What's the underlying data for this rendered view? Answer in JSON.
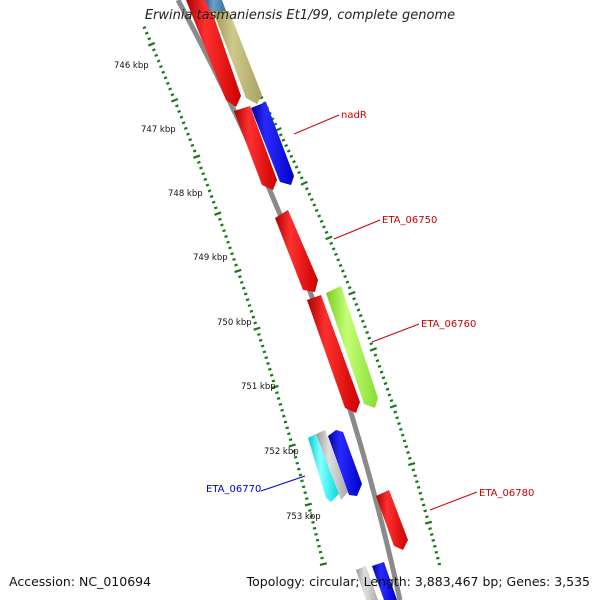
{
  "title": "Erwinia tasmaniensis Et1/99, complete genome",
  "footer": {
    "accession": "Accession: NC_010694",
    "summary": "Topology: circular; Length: 3,883,467 bp; Genes: 3,535"
  },
  "scale_labels": [
    "746 kbp",
    "747 kbp",
    "748 kbp",
    "749 kbp",
    "750 kbp",
    "751 kbp",
    "752 kbp",
    "753 kbp"
  ],
  "gene_labels": [
    {
      "text": "nadR",
      "color": "#cc0000"
    },
    {
      "text": "ETA_06750",
      "color": "#cc0000"
    },
    {
      "text": "ETA_06760",
      "color": "#cc0000"
    },
    {
      "text": "ETA_06770",
      "color": "#0000cc"
    },
    {
      "text": "ETA_06780",
      "color": "#cc0000"
    }
  ],
  "colors": {
    "backbone": "#808080",
    "tick": "#1a7a1a",
    "red": "#ff0000",
    "blue": "#0000ff",
    "khaki": "#bdb76b",
    "steel": "#4682b4",
    "lime": "#99ff33",
    "cyan": "#00ffff",
    "silver": "#c0c0c0"
  }
}
